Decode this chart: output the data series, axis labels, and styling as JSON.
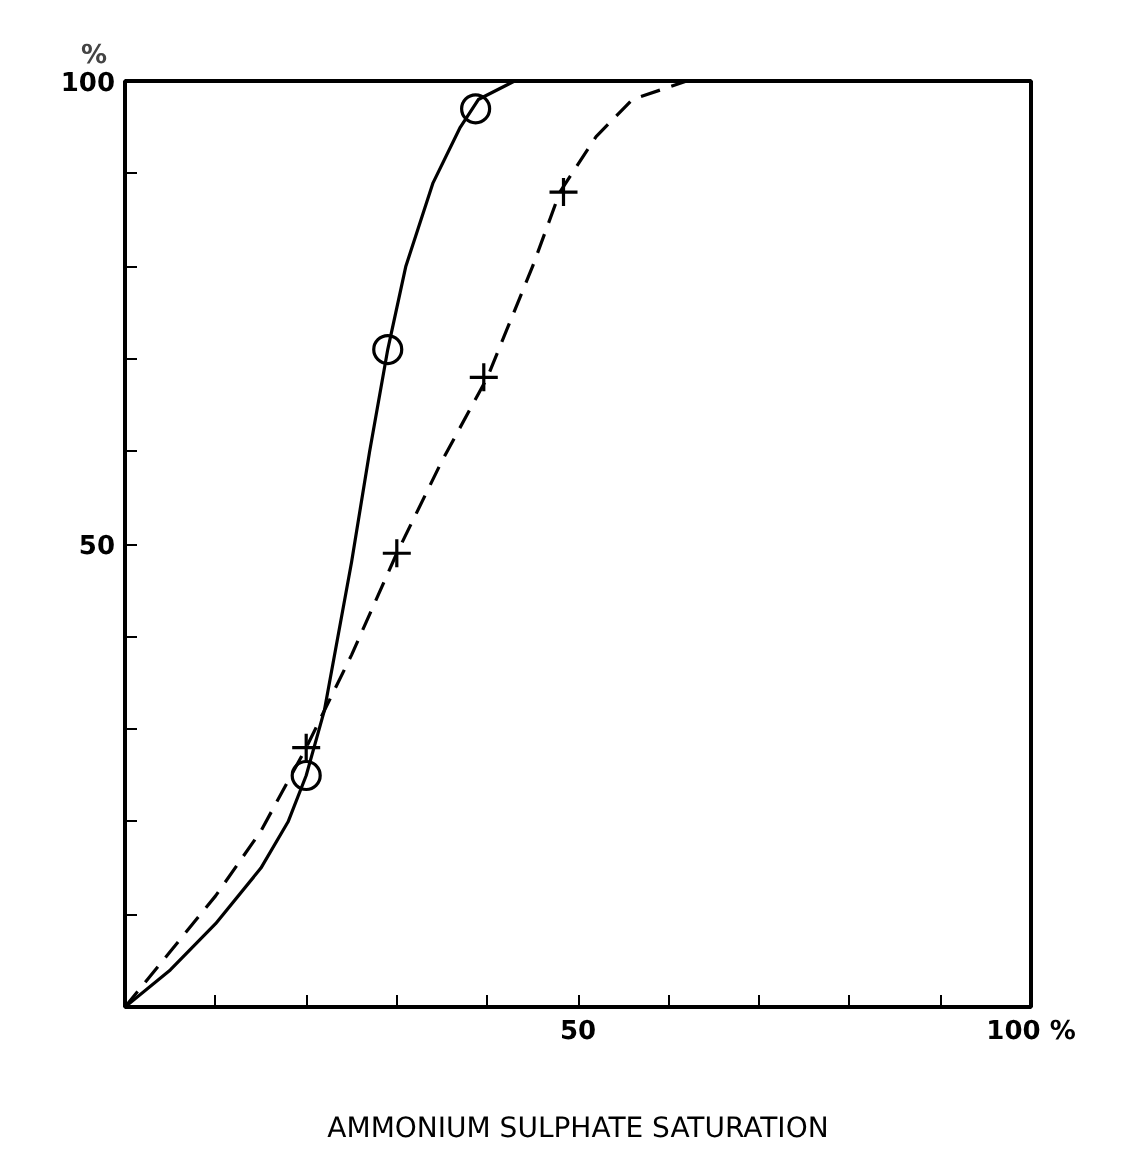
{
  "chart_data": {
    "type": "line",
    "xlabel": "AMMONIUM SULPHATE SATURATION",
    "ylabel": "%",
    "xlim": [
      0,
      100
    ],
    "ylim": [
      0,
      100
    ],
    "xticks": [
      {
        "value": 0,
        "label": null
      },
      {
        "value": 10,
        "label": null
      },
      {
        "value": 20,
        "label": null
      },
      {
        "value": 30,
        "label": null
      },
      {
        "value": 40,
        "label": null
      },
      50,
      {
        "value": 60,
        "label": null
      },
      {
        "value": 70,
        "label": null
      },
      {
        "value": 80,
        "label": null
      },
      {
        "value": 90,
        "label": null
      },
      {
        "value": 100,
        "label": "100 %"
      }
    ],
    "yticks": [
      {
        "value": 0,
        "label": null
      },
      {
        "value": 10,
        "label": null
      },
      {
        "value": 20,
        "label": null
      },
      {
        "value": 30,
        "label": null
      },
      {
        "value": 40,
        "label": null
      },
      50,
      {
        "value": 60,
        "label": null
      },
      {
        "value": 70,
        "label": null
      },
      {
        "value": 80,
        "label": null
      },
      {
        "value": 90,
        "label": null
      },
      100
    ],
    "grid": false,
    "series": [
      {
        "color": "#000000",
        "line_style": "solid",
        "marker": "none",
        "x": [
          0,
          5,
          10,
          15,
          18,
          20,
          22,
          25,
          27,
          29,
          31,
          34,
          37,
          39,
          43
        ],
        "values": [
          0,
          4,
          9,
          15,
          20,
          25,
          32,
          48,
          60,
          71,
          80,
          89,
          95,
          98,
          100
        ]
      },
      {
        "color": "#000000",
        "line_style": "dashed",
        "marker": "none",
        "x": [
          0,
          5,
          10,
          15,
          20,
          25,
          30,
          35,
          40,
          45,
          48,
          52,
          56,
          62
        ],
        "values": [
          0,
          6,
          12,
          19,
          28,
          38,
          49,
          59,
          68,
          80,
          88,
          94,
          98,
          100
        ]
      },
      {
        "type": "scatter",
        "color": "#000000",
        "marker": "circle",
        "x": [
          20,
          29,
          38.7
        ],
        "values": [
          25,
          71,
          97
        ]
      },
      {
        "type": "scatter",
        "color": "#000000",
        "marker": "cross",
        "x": [
          20,
          30,
          39.6,
          48.4
        ],
        "values": [
          28,
          49,
          68,
          88
        ]
      }
    ]
  }
}
